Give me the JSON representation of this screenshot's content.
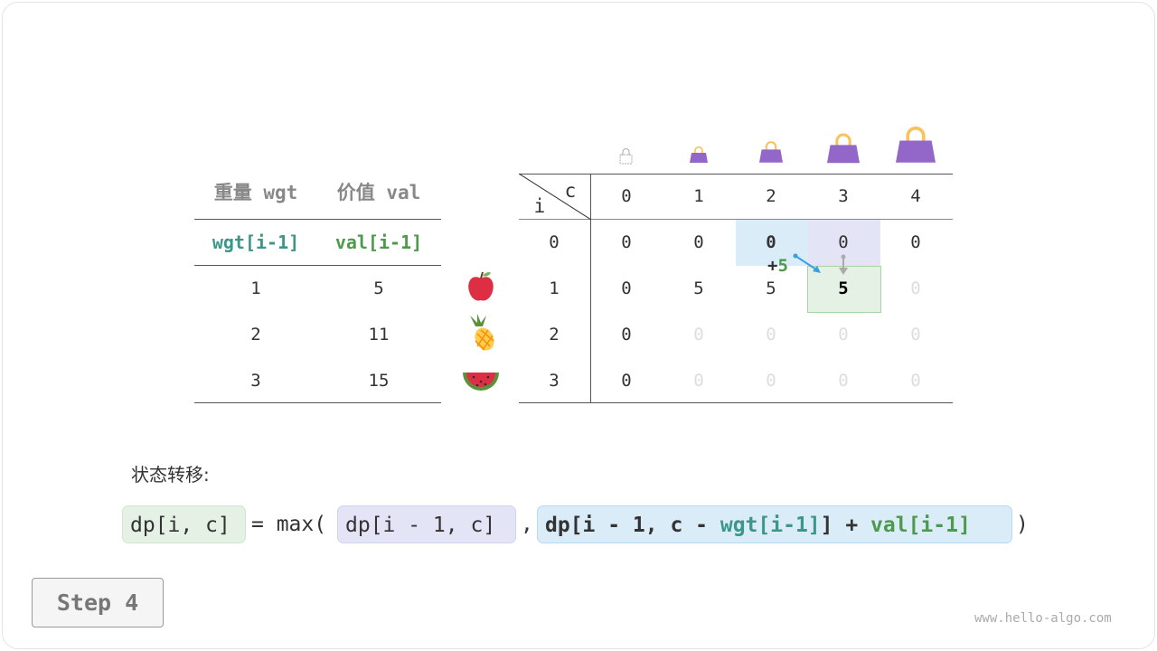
{
  "item_table": {
    "headers": [
      "重量 wgt",
      "价值 val"
    ],
    "subheaders": [
      "wgt[i-1]",
      "val[i-1]"
    ],
    "rows": [
      [
        "1",
        "5"
      ],
      [
        "2",
        "11"
      ],
      [
        "3",
        "15"
      ]
    ],
    "items": [
      "apple-icon",
      "pineapple-icon",
      "watermelon-icon"
    ]
  },
  "dp_table": {
    "corner_c": "c",
    "corner_i": "i",
    "capacities": [
      "0",
      "1",
      "2",
      "3",
      "4"
    ],
    "row_labels": [
      "0",
      "1",
      "2",
      "3"
    ],
    "cells": [
      [
        "0",
        "0",
        "0",
        "0",
        "0"
      ],
      [
        "0",
        "5",
        "5",
        "5",
        "0"
      ],
      [
        "0",
        "0",
        "0",
        "0",
        "0"
      ],
      [
        "0",
        "0",
        "0",
        "0",
        "0"
      ]
    ],
    "filled": [
      [
        1,
        1,
        1,
        1,
        1
      ],
      [
        1,
        1,
        1,
        1,
        0
      ],
      [
        1,
        0,
        0,
        0,
        0
      ],
      [
        1,
        0,
        0,
        0,
        0
      ]
    ],
    "current_cell": [
      1,
      3
    ],
    "source_diag": [
      0,
      2
    ],
    "source_up": [
      0,
      3
    ],
    "plus_label": "+",
    "plus_value": "5"
  },
  "formula": {
    "title": "状态转移:",
    "lhs": "dp[i, c]",
    "eq": "= max(",
    "opt1": "dp[i - 1, c]",
    "comma": ",",
    "opt2_a": "dp[i - 1, c - ",
    "opt2_wgt": "wgt[i-1]",
    "opt2_b": "] + ",
    "opt2_val": "val[i-1]",
    "close": ")"
  },
  "step_label": "Step 4",
  "watermark": "www.hello-algo.com",
  "colors": {
    "teal": "#3b9787",
    "green": "#4c9a4c",
    "purple": "#9366c9",
    "handle": "#f8c45a",
    "blue_bg": "#dbecf9",
    "purple_bg": "#e3e5f7",
    "green_bg": "#e4f1e4",
    "arrow_blue": "#3a9fe0"
  }
}
